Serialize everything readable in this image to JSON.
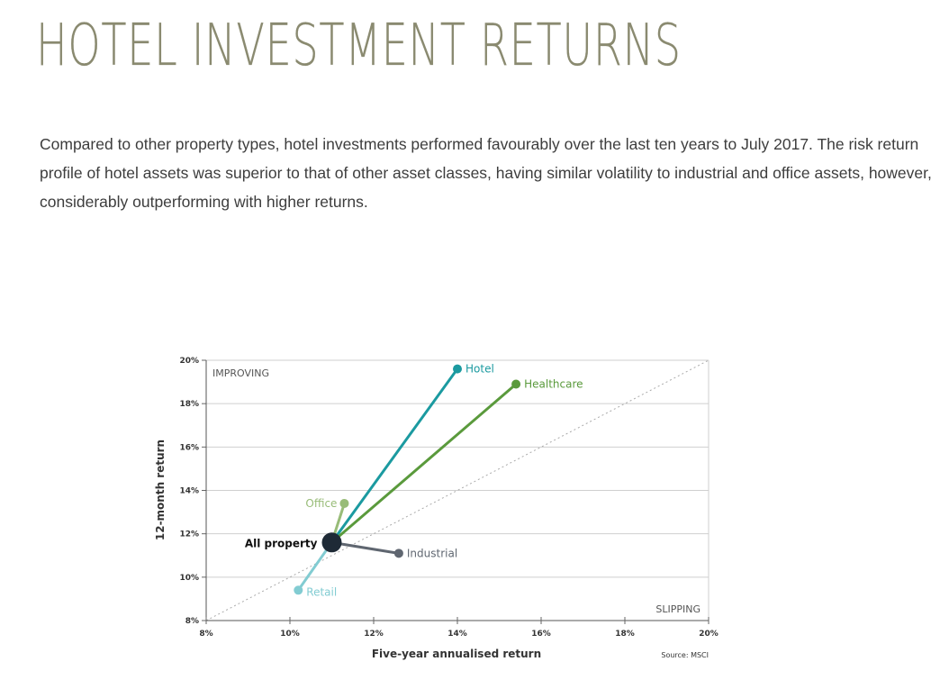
{
  "title": "HOTEL INVESTMENT RETURNS",
  "intro": "Compared to other property types, hotel investments performed favourably over the last ten years to July 2017. The risk return profile of hotel assets was superior to that of other asset classes, having similar volatility to industrial and office assets, however, considerably outperforming with higher returns.",
  "chart_data": {
    "type": "scatter",
    "xlabel": "Five-year annualised return",
    "ylabel": "12-month return",
    "xlim": [
      8,
      20
    ],
    "ylim": [
      8,
      20
    ],
    "x_ticks": [
      "8%",
      "10%",
      "12%",
      "14%",
      "16%",
      "18%",
      "20%"
    ],
    "y_ticks": [
      "8%",
      "10%",
      "12%",
      "14%",
      "16%",
      "18%",
      "20%"
    ],
    "grid": "horizontal",
    "reference_line": "diagonal",
    "annotations": {
      "top_left": "IMPROVING",
      "bottom_right": "SLIPPING",
      "source": "Source: MSCI"
    },
    "origin": {
      "name": "All property",
      "x": 11.0,
      "y": 11.6,
      "color": "#1e2a36"
    },
    "series": [
      {
        "name": "Hotel",
        "x": 14.0,
        "y": 19.6,
        "color": "#1b9aa0"
      },
      {
        "name": "Healthcare",
        "x": 15.4,
        "y": 18.9,
        "color": "#5a9a3c"
      },
      {
        "name": "Office",
        "x": 11.3,
        "y": 13.4,
        "color": "#98bc78"
      },
      {
        "name": "Industrial",
        "x": 12.6,
        "y": 11.1,
        "color": "#5f6670"
      },
      {
        "name": "Retail",
        "x": 10.2,
        "y": 9.4,
        "color": "#82ccd2"
      }
    ]
  }
}
